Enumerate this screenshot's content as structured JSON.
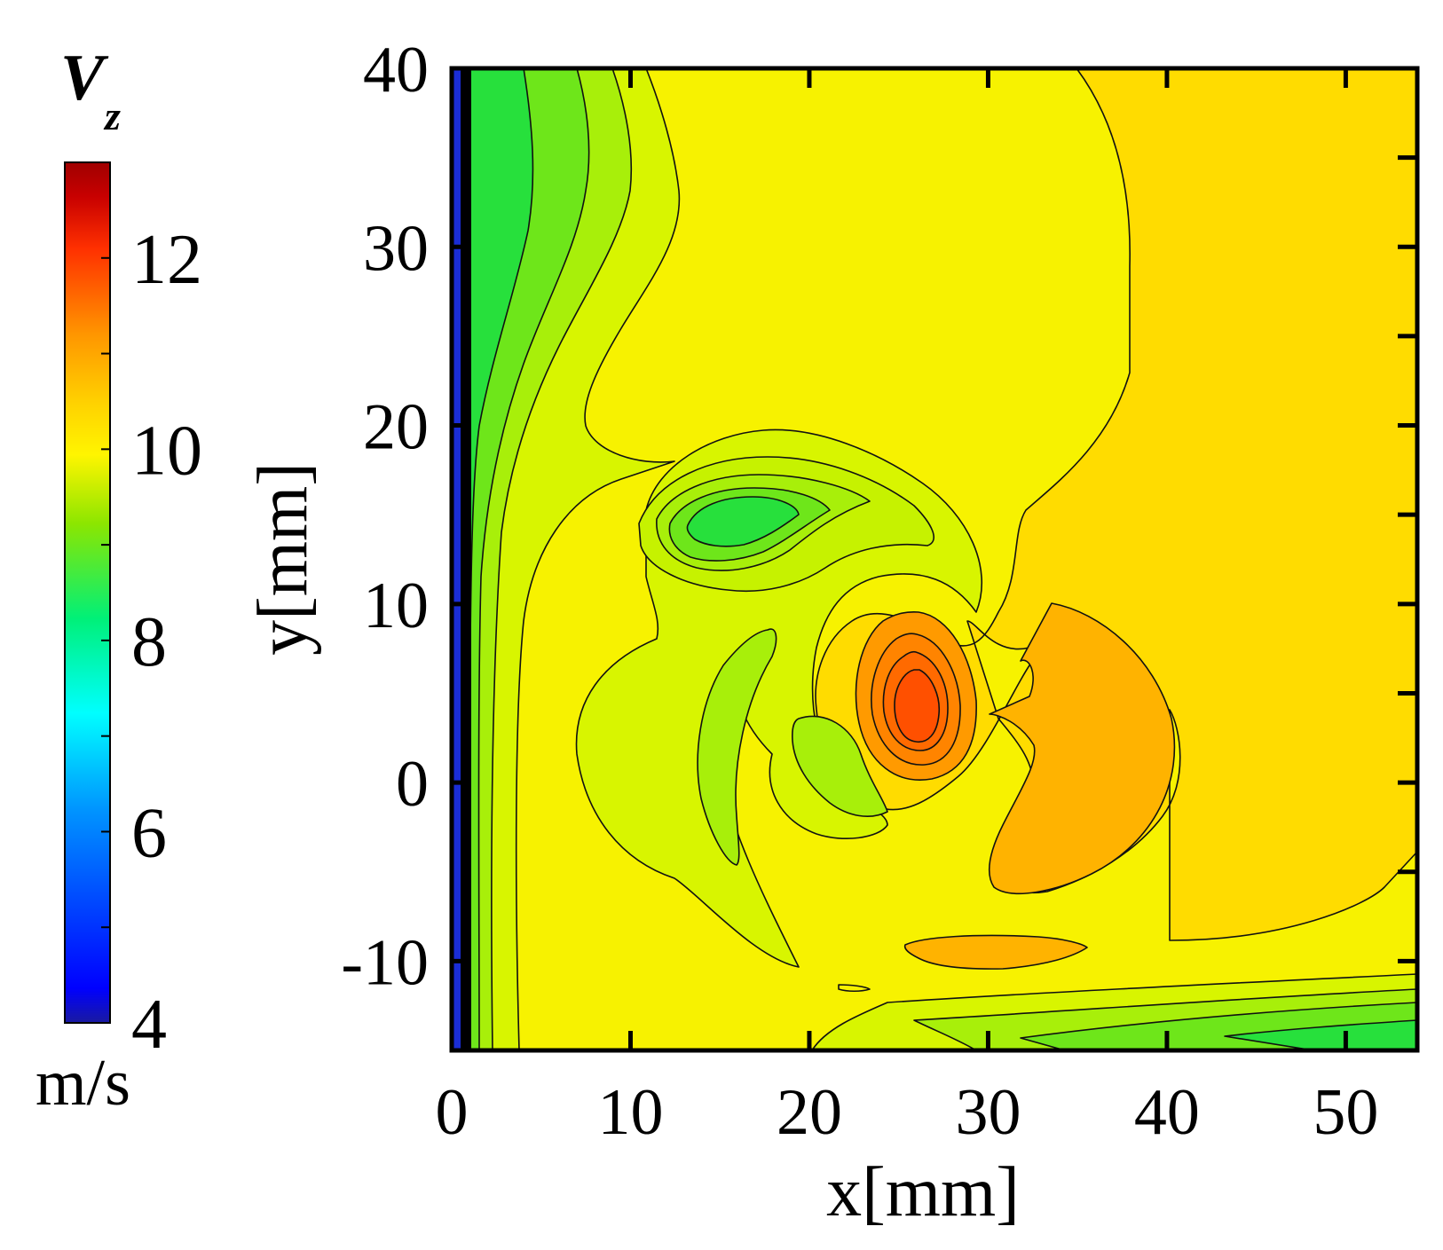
{
  "chart_data": {
    "type": "heatmap",
    "title": "",
    "xlabel": "x[mm]",
    "ylabel": "y[mm]",
    "xlim": [
      0,
      54
    ],
    "ylim": [
      -15,
      40
    ],
    "xticks": [
      0,
      10,
      20,
      30,
      40,
      50
    ],
    "yticks": [
      -10,
      0,
      10,
      20,
      30,
      40
    ],
    "colorbar": {
      "label": "V",
      "subscript": "z",
      "unit": "m/s",
      "range": [
        4,
        13
      ],
      "ticks": [
        4,
        6,
        8,
        10,
        12
      ],
      "colormap": [
        "#1a1aa0",
        "#0000ff",
        "#0096ff",
        "#00ffff",
        "#00f078",
        "#8ce600",
        "#fff500",
        "#ffd200",
        "#ff9600",
        "#ff3000",
        "#c80000",
        "#a00000"
      ]
    },
    "fill_levels": [
      {
        "value": 4.2,
        "color": "#1a2dd6"
      },
      {
        "value": 8.4,
        "color": "#27e03c"
      },
      {
        "value": 8.8,
        "color": "#6ee61a"
      },
      {
        "value": 9.2,
        "color": "#a8ef0a"
      },
      {
        "value": 9.6,
        "color": "#d8f500"
      },
      {
        "value": 10.0,
        "color": "#f7f200"
      },
      {
        "value": 10.4,
        "color": "#ffdc00"
      },
      {
        "value": 10.8,
        "color": "#ffb300"
      },
      {
        "value": 11.2,
        "color": "#ff8400"
      },
      {
        "value": 11.6,
        "color": "#ff5a00"
      }
    ],
    "features": [
      {
        "name": "wall-low-velocity-layer",
        "x_range": [
          0,
          2
        ],
        "y_range": [
          -15,
          40
        ],
        "min_value": 4.2
      },
      {
        "name": "low-velocity-core",
        "center": [
          17,
          15
        ],
        "min_value": 8.4
      },
      {
        "name": "high-velocity-core",
        "center": [
          26.5,
          4.5
        ],
        "max_value": 11.6
      },
      {
        "name": "high-velocity-lobe",
        "center": [
          38,
          2
        ],
        "value": 10.8
      },
      {
        "name": "bottom-shear-layer",
        "y_range": [
          -15,
          -11
        ],
        "min_value": 8.4
      }
    ]
  }
}
